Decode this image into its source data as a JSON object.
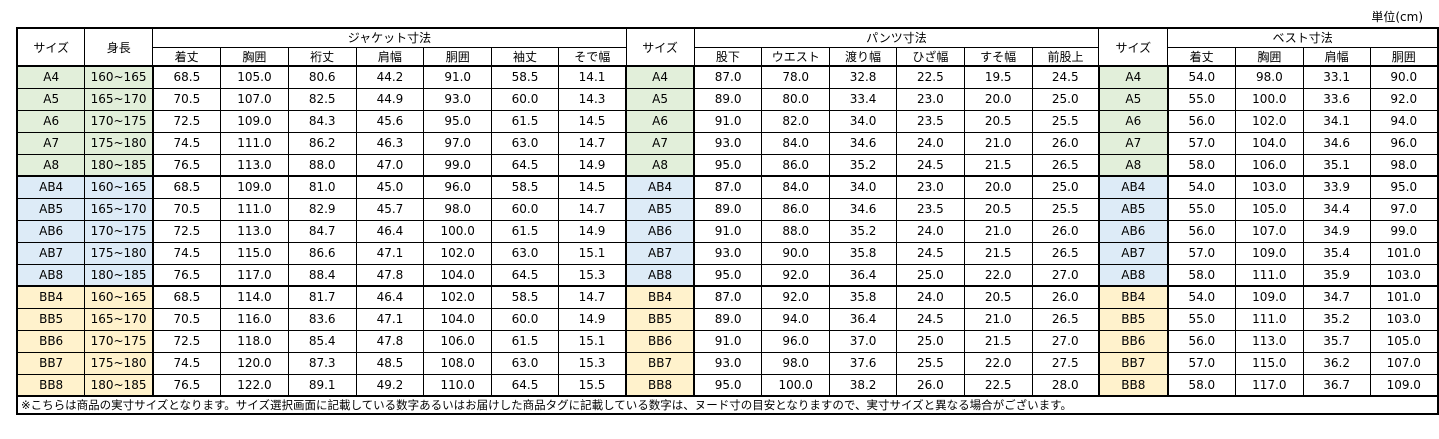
{
  "unit_label": "単位(cm)",
  "header": {
    "size": "サイズ",
    "height": "身長",
    "jacket": {
      "title": "ジャケット寸法",
      "cols": [
        "着丈",
        "胸囲",
        "裄丈",
        "肩幅",
        "胴囲",
        "袖丈",
        "そで幅"
      ]
    },
    "pants": {
      "title": "パンツ寸法",
      "cols": [
        "股下",
        "ウエスト",
        "渡り幅",
        "ひざ幅",
        "すそ幅",
        "前股上"
      ]
    },
    "vest": {
      "title": "ベスト寸法",
      "cols": [
        "着丈",
        "胸囲",
        "肩幅",
        "胴囲"
      ]
    }
  },
  "colors": {
    "A": "#e2efda",
    "AB": "#ddebf7",
    "BB": "#fff2cc"
  },
  "rows": [
    {
      "size": "A4",
      "group": "A",
      "height": "160~165",
      "jacket": [
        "68.5",
        "105.0",
        "80.6",
        "44.2",
        "91.0",
        "58.5",
        "14.1"
      ],
      "pants": [
        "87.0",
        "78.0",
        "32.8",
        "22.5",
        "19.5",
        "24.5"
      ],
      "vest": [
        "54.0",
        "98.0",
        "33.1",
        "90.0"
      ]
    },
    {
      "size": "A5",
      "group": "A",
      "height": "165~170",
      "jacket": [
        "70.5",
        "107.0",
        "82.5",
        "44.9",
        "93.0",
        "60.0",
        "14.3"
      ],
      "pants": [
        "89.0",
        "80.0",
        "33.4",
        "23.0",
        "20.0",
        "25.0"
      ],
      "vest": [
        "55.0",
        "100.0",
        "33.6",
        "92.0"
      ]
    },
    {
      "size": "A6",
      "group": "A",
      "height": "170~175",
      "jacket": [
        "72.5",
        "109.0",
        "84.3",
        "45.6",
        "95.0",
        "61.5",
        "14.5"
      ],
      "pants": [
        "91.0",
        "82.0",
        "34.0",
        "23.5",
        "20.5",
        "25.5"
      ],
      "vest": [
        "56.0",
        "102.0",
        "34.1",
        "94.0"
      ]
    },
    {
      "size": "A7",
      "group": "A",
      "height": "175~180",
      "jacket": [
        "74.5",
        "111.0",
        "86.2",
        "46.3",
        "97.0",
        "63.0",
        "14.7"
      ],
      "pants": [
        "93.0",
        "84.0",
        "34.6",
        "24.0",
        "21.0",
        "26.0"
      ],
      "vest": [
        "57.0",
        "104.0",
        "34.6",
        "96.0"
      ]
    },
    {
      "size": "A8",
      "group": "A",
      "height": "180~185",
      "jacket": [
        "76.5",
        "113.0",
        "88.0",
        "47.0",
        "99.0",
        "64.5",
        "14.9"
      ],
      "pants": [
        "95.0",
        "86.0",
        "35.2",
        "24.5",
        "21.5",
        "26.5"
      ],
      "vest": [
        "58.0",
        "106.0",
        "35.1",
        "98.0"
      ]
    },
    {
      "size": "AB4",
      "group": "AB",
      "height": "160~165",
      "jacket": [
        "68.5",
        "109.0",
        "81.0",
        "45.0",
        "96.0",
        "58.5",
        "14.5"
      ],
      "pants": [
        "87.0",
        "84.0",
        "34.0",
        "23.0",
        "20.0",
        "25.0"
      ],
      "vest": [
        "54.0",
        "103.0",
        "33.9",
        "95.0"
      ]
    },
    {
      "size": "AB5",
      "group": "AB",
      "height": "165~170",
      "jacket": [
        "70.5",
        "111.0",
        "82.9",
        "45.7",
        "98.0",
        "60.0",
        "14.7"
      ],
      "pants": [
        "89.0",
        "86.0",
        "34.6",
        "23.5",
        "20.5",
        "25.5"
      ],
      "vest": [
        "55.0",
        "105.0",
        "34.4",
        "97.0"
      ]
    },
    {
      "size": "AB6",
      "group": "AB",
      "height": "170~175",
      "jacket": [
        "72.5",
        "113.0",
        "84.7",
        "46.4",
        "100.0",
        "61.5",
        "14.9"
      ],
      "pants": [
        "91.0",
        "88.0",
        "35.2",
        "24.0",
        "21.0",
        "26.0"
      ],
      "vest": [
        "56.0",
        "107.0",
        "34.9",
        "99.0"
      ]
    },
    {
      "size": "AB7",
      "group": "AB",
      "height": "175~180",
      "jacket": [
        "74.5",
        "115.0",
        "86.6",
        "47.1",
        "102.0",
        "63.0",
        "15.1"
      ],
      "pants": [
        "93.0",
        "90.0",
        "35.8",
        "24.5",
        "21.5",
        "26.5"
      ],
      "vest": [
        "57.0",
        "109.0",
        "35.4",
        "101.0"
      ]
    },
    {
      "size": "AB8",
      "group": "AB",
      "height": "180~185",
      "jacket": [
        "76.5",
        "117.0",
        "88.4",
        "47.8",
        "104.0",
        "64.5",
        "15.3"
      ],
      "pants": [
        "95.0",
        "92.0",
        "36.4",
        "25.0",
        "22.0",
        "27.0"
      ],
      "vest": [
        "58.0",
        "111.0",
        "35.9",
        "103.0"
      ]
    },
    {
      "size": "BB4",
      "group": "BB",
      "height": "160~165",
      "jacket": [
        "68.5",
        "114.0",
        "81.7",
        "46.4",
        "102.0",
        "58.5",
        "14.7"
      ],
      "pants": [
        "87.0",
        "92.0",
        "35.8",
        "24.0",
        "20.5",
        "26.0"
      ],
      "vest": [
        "54.0",
        "109.0",
        "34.7",
        "101.0"
      ]
    },
    {
      "size": "BB5",
      "group": "BB",
      "height": "165~170",
      "jacket": [
        "70.5",
        "116.0",
        "83.6",
        "47.1",
        "104.0",
        "60.0",
        "14.9"
      ],
      "pants": [
        "89.0",
        "94.0",
        "36.4",
        "24.5",
        "21.0",
        "26.5"
      ],
      "vest": [
        "55.0",
        "111.0",
        "35.2",
        "103.0"
      ]
    },
    {
      "size": "BB6",
      "group": "BB",
      "height": "170~175",
      "jacket": [
        "72.5",
        "118.0",
        "85.4",
        "47.8",
        "106.0",
        "61.5",
        "15.1"
      ],
      "pants": [
        "91.0",
        "96.0",
        "37.0",
        "25.0",
        "21.5",
        "27.0"
      ],
      "vest": [
        "56.0",
        "113.0",
        "35.7",
        "105.0"
      ]
    },
    {
      "size": "BB7",
      "group": "BB",
      "height": "175~180",
      "jacket": [
        "74.5",
        "120.0",
        "87.3",
        "48.5",
        "108.0",
        "63.0",
        "15.3"
      ],
      "pants": [
        "93.0",
        "98.0",
        "37.6",
        "25.5",
        "22.0",
        "27.5"
      ],
      "vest": [
        "57.0",
        "115.0",
        "36.2",
        "107.0"
      ]
    },
    {
      "size": "BB8",
      "group": "BB",
      "height": "180~185",
      "jacket": [
        "76.5",
        "122.0",
        "89.1",
        "49.2",
        "110.0",
        "64.5",
        "15.5"
      ],
      "pants": [
        "95.0",
        "100.0",
        "38.2",
        "26.0",
        "22.5",
        "28.0"
      ],
      "vest": [
        "58.0",
        "117.0",
        "36.7",
        "109.0"
      ]
    }
  ],
  "note": "※こちらは商品の実寸サイズとなります。サイズ選択画面に記載している数字あるいはお届けした商品タグに記載している数字は、ヌード寸の目安となりますので、実寸サイズと異なる場合がございます。"
}
